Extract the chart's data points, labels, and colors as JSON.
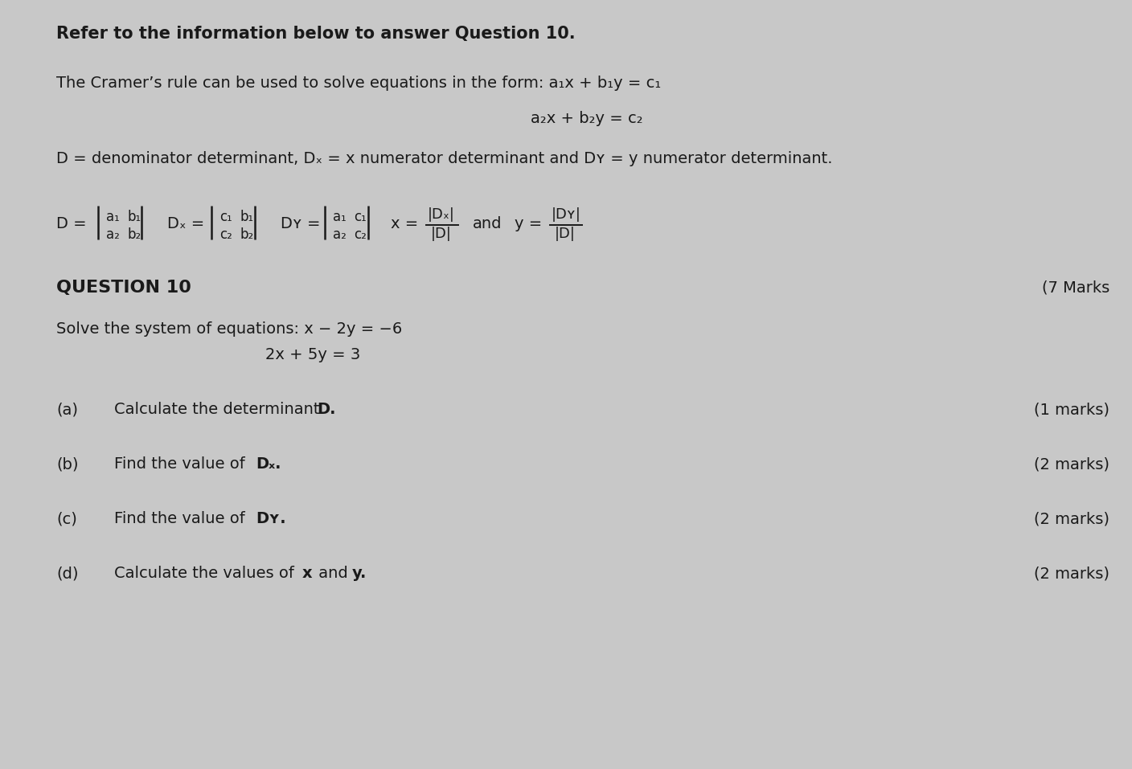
{
  "background_color": "#c8c8c8",
  "text_color": "#1a1a1a",
  "title_line": "Refer to the information below to answer Question 10.",
  "intro_line": "The Cramer’s rule can be used to solve equations in the form: a₁x + b₁y = c₁",
  "eq2_line": "a₂x + b₂y = c₂",
  "def_line": "D = denominator determinant, Dₓ = x numerator determinant and Dʏ = y numerator determinant.",
  "question_label": "QUESTION 10",
  "marks_label": "(7 Marks",
  "question_text": "Solve the system of equations: x − 2y = −6",
  "eq_system_2": "2x + 5y = 3",
  "font_size_title": 15,
  "font_size_body": 14,
  "font_size_matrix": 12,
  "font_size_question": 16,
  "lm": 70,
  "fig_width": 14.08,
  "fig_height": 9.57,
  "dpi": 100
}
